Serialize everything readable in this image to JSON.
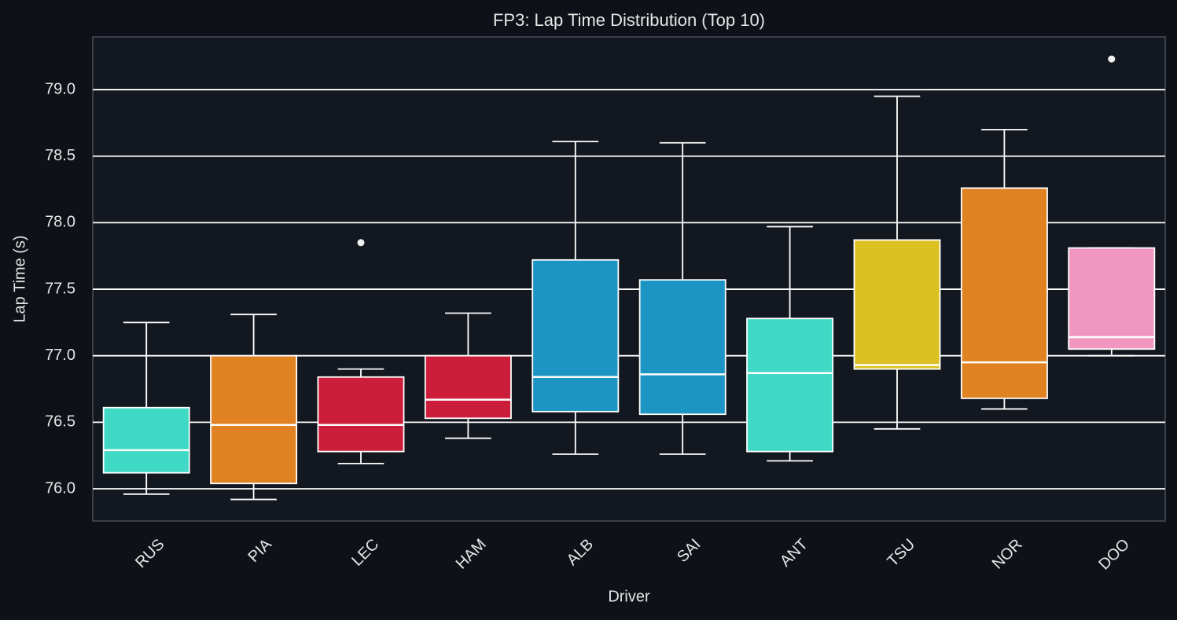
{
  "chart_data": {
    "type": "box",
    "title": "FP3: Lap Time Distribution (Top 10)",
    "x_label": "Driver",
    "y_label": "Lap Time (s)",
    "categories": [
      "RUS",
      "PIA",
      "LEC",
      "HAM",
      "ALB",
      "SAI",
      "ANT",
      "TSU",
      "NOR",
      "DOO"
    ],
    "colors": [
      "#40d9c5",
      "#e08122",
      "#cc1e3a",
      "#cc1e3a",
      "#1c95c4",
      "#1c95c4",
      "#40d9c5",
      "#ddc022",
      "#e08122",
      "#f096c0"
    ],
    "whisker_low": [
      75.96,
      75.92,
      76.19,
      76.38,
      76.26,
      76.26,
      76.21,
      76.45,
      76.6,
      77.0
    ],
    "q1": [
      76.12,
      76.04,
      76.28,
      76.53,
      76.58,
      76.56,
      76.28,
      76.9,
      76.68,
      77.05
    ],
    "median": [
      76.29,
      76.48,
      76.48,
      76.67,
      76.84,
      76.86,
      76.87,
      76.93,
      76.95,
      77.14
    ],
    "q3": [
      76.61,
      77.0,
      76.84,
      77.0,
      77.72,
      77.57,
      77.28,
      77.87,
      78.26,
      77.81
    ],
    "whisker_high": [
      77.25,
      77.31,
      76.9,
      77.32,
      78.61,
      78.6,
      77.97,
      78.95,
      78.7,
      77.81
    ],
    "outliers": [
      [],
      [],
      [
        77.85
      ],
      [],
      [],
      [],
      [],
      [],
      [],
      [
        79.23
      ]
    ],
    "ylim": [
      75.758,
      79.396
    ],
    "yticks": [
      {
        "value": 76,
        "label": "76.0"
      },
      {
        "value": 76.5,
        "label": "76.5"
      },
      {
        "value": 77,
        "label": "77.0"
      },
      {
        "value": 77.5,
        "label": "77.5"
      },
      {
        "value": 78,
        "label": "78.0"
      },
      {
        "value": 78.5,
        "label": "78.5"
      },
      {
        "value": 79,
        "label": "79.0"
      }
    ],
    "grid": true
  }
}
